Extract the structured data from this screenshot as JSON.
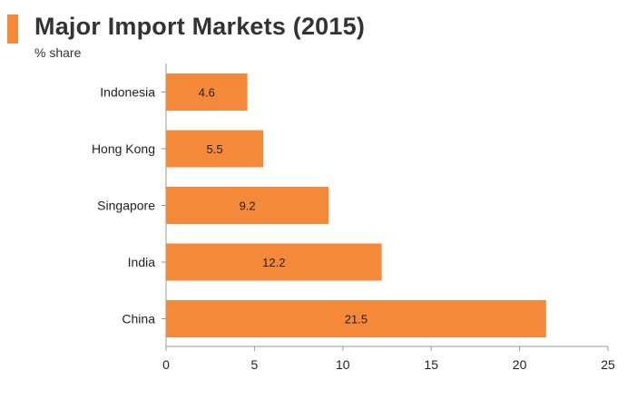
{
  "colors": {
    "accent": "#f5893a",
    "axis": "#999999",
    "text": "#333333"
  },
  "chart_data": {
    "type": "bar",
    "orientation": "horizontal",
    "title": "Major Import Markets (2015)",
    "subtitle": "% share",
    "categories": [
      "Indonesia",
      "Hong Kong",
      "Singapore",
      "India",
      "China"
    ],
    "values": [
      4.6,
      5.5,
      9.2,
      12.2,
      21.5
    ],
    "value_labels": [
      "4.6",
      "5.5",
      "9.2",
      "12.2",
      "21.5"
    ],
    "xlim": [
      0,
      25
    ],
    "xticks": [
      0,
      5,
      10,
      15,
      20,
      25
    ],
    "xtick_labels": [
      "0",
      "5",
      "10",
      "15",
      "20",
      "25"
    ],
    "xlabel": "",
    "ylabel": "",
    "grid": false,
    "legend": "none"
  }
}
